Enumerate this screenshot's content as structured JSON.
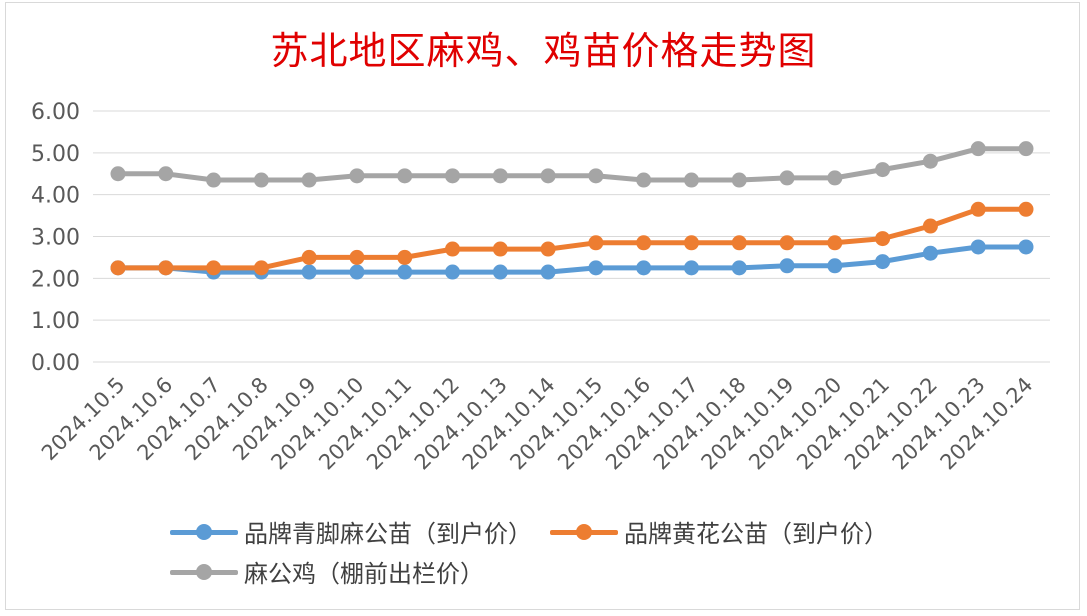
{
  "chart_data": {
    "type": "line",
    "title": "苏北地区麻鸡、鸡苗价格走势图",
    "categories": [
      "2024.10.5",
      "2024.10.6",
      "2024.10.7",
      "2024.10.8",
      "2024.10.9",
      "2024.10.10",
      "2024.10.11",
      "2024.10.12",
      "2024.10.13",
      "2024.10.14",
      "2024.10.15",
      "2024.10.16",
      "2024.10.17",
      "2024.10.18",
      "2024.10.19",
      "2024.10.20",
      "2024.10.21",
      "2024.10.22",
      "2024.10.23",
      "2024.10.24"
    ],
    "ylim": [
      0,
      6
    ],
    "yticks": [
      "0.00",
      "1.00",
      "2.00",
      "3.00",
      "4.00",
      "5.00",
      "6.00"
    ],
    "grid": true,
    "legend_position": "bottom",
    "series": [
      {
        "name": "品牌青脚麻公苗（到户价）",
        "color": "#5b9bd5",
        "values": [
          2.25,
          2.25,
          2.15,
          2.15,
          2.15,
          2.15,
          2.15,
          2.15,
          2.15,
          2.15,
          2.25,
          2.25,
          2.25,
          2.25,
          2.3,
          2.3,
          2.4,
          2.6,
          2.75,
          2.75
        ]
      },
      {
        "name": "品牌黄花公苗（到户价）",
        "color": "#ed7d31",
        "values": [
          2.25,
          2.25,
          2.25,
          2.25,
          2.5,
          2.5,
          2.5,
          2.7,
          2.7,
          2.7,
          2.85,
          2.85,
          2.85,
          2.85,
          2.85,
          2.85,
          2.95,
          3.25,
          3.65,
          3.65
        ]
      },
      {
        "name": "麻公鸡（棚前出栏价）",
        "color": "#a5a5a5",
        "values": [
          4.5,
          4.5,
          4.35,
          4.35,
          4.35,
          4.45,
          4.45,
          4.45,
          4.45,
          4.45,
          4.45,
          4.35,
          4.35,
          4.35,
          4.4,
          4.4,
          4.6,
          4.8,
          5.1,
          5.1
        ]
      }
    ]
  }
}
